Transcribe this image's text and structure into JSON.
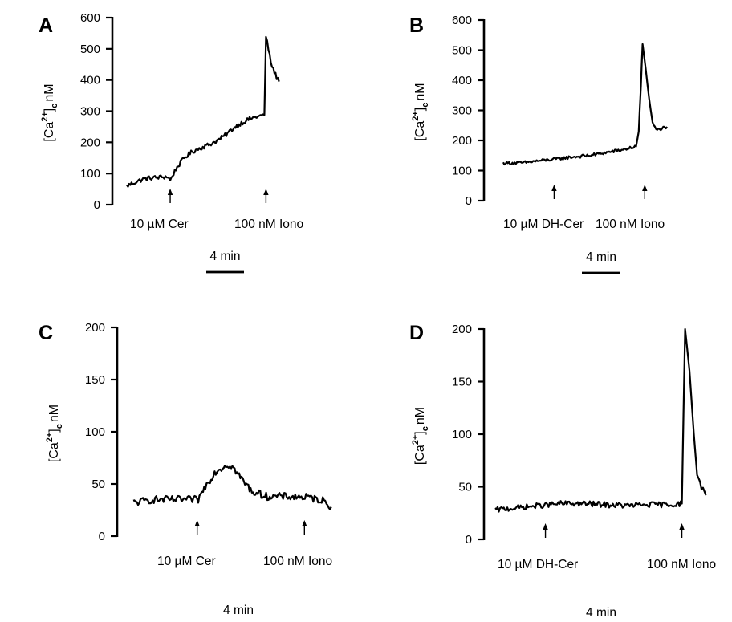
{
  "figure": {
    "ylabel_main": "[Ca",
    "ylabel_sup": "2+",
    "ylabel_close": "]",
    "ylabel_sub": "c",
    "ylabel_unit": "nM"
  },
  "chart_data": [
    {
      "type": "line",
      "panel": "A",
      "ylim": [
        0,
        600
      ],
      "yticks": [
        "0",
        "100",
        "200",
        "300",
        "400",
        "500",
        "600"
      ],
      "ylabel": "[Ca2+]c nM",
      "xlim": [
        0,
        20
      ],
      "x_units": "min",
      "scale_bar_label": "4 min",
      "annotations": [
        {
          "label": "10 µM  Cer",
          "x": 5.3
        },
        {
          "label": "100 nM Iono",
          "x": 17.0
        }
      ],
      "series": [
        {
          "points": [
            [
              0,
              60
            ],
            [
              1,
              72
            ],
            [
              2,
              82
            ],
            [
              3,
              86
            ],
            [
              4,
              88
            ],
            [
              5,
              90
            ],
            [
              5.3,
              78
            ],
            [
              6,
              115
            ],
            [
              7,
              150
            ],
            [
              8,
              170
            ],
            [
              9,
              182
            ],
            [
              10,
              192
            ],
            [
              11,
              205
            ],
            [
              12,
              222
            ],
            [
              13,
              245
            ],
            [
              14,
              262
            ],
            [
              15,
              275
            ],
            [
              16,
              283
            ],
            [
              16.8,
              288
            ],
            [
              17.0,
              540
            ],
            [
              17.3,
              500
            ],
            [
              17.6,
              455
            ],
            [
              17.9,
              435
            ],
            [
              18.3,
              408
            ],
            [
              18.6,
              395
            ]
          ],
          "noise": 7
        }
      ]
    },
    {
      "type": "line",
      "panel": "B",
      "ylim": [
        0,
        600
      ],
      "yticks": [
        "0",
        "100",
        "200",
        "300",
        "400",
        "500",
        "600"
      ],
      "ylabel": "[Ca2+]c nM",
      "xlim": [
        0,
        20
      ],
      "x_units": "min",
      "scale_bar_label": "4 min",
      "annotations": [
        {
          "label": "10 µM DH-Cer",
          "x": 5.9
        },
        {
          "label": "100 nM Iono",
          "x": 16.4
        }
      ],
      "series": [
        {
          "points": [
            [
              0,
              125
            ],
            [
              2,
              125
            ],
            [
              4,
              132
            ],
            [
              6,
              138
            ],
            [
              8,
              145
            ],
            [
              10,
              150
            ],
            [
              12,
              160
            ],
            [
              14,
              170
            ],
            [
              15.4,
              180
            ],
            [
              15.7,
              230
            ],
            [
              15.95,
              380
            ],
            [
              16.15,
              520
            ],
            [
              16.5,
              440
            ],
            [
              16.9,
              340
            ],
            [
              17.3,
              260
            ],
            [
              17.7,
              235
            ],
            [
              18.4,
              240
            ],
            [
              19.0,
              245
            ]
          ],
          "noise": 5
        }
      ]
    },
    {
      "type": "line",
      "panel": "C",
      "ylim": [
        0,
        200
      ],
      "yticks": [
        "0",
        "50",
        "100",
        "150",
        "200"
      ],
      "ylabel": "[Ca2+]c nM",
      "xlim": [
        0,
        20
      ],
      "x_units": "min",
      "scale_bar_label": "4 min",
      "annotations": [
        {
          "label": "10 µM  Cer",
          "x": 6.2
        },
        {
          "label": "100 nM Iono",
          "x": 16.6
        }
      ],
      "series": [
        {
          "points": [
            [
              0,
              32
            ],
            [
              2,
              35
            ],
            [
              4,
              35
            ],
            [
              5.5,
              35
            ],
            [
              6.3,
              35
            ],
            [
              7,
              48
            ],
            [
              8,
              62
            ],
            [
              9,
              68
            ],
            [
              9.5,
              68
            ],
            [
              10.5,
              55
            ],
            [
              11.5,
              43
            ],
            [
              13,
              38
            ],
            [
              15,
              38
            ],
            [
              17,
              37
            ],
            [
              18.5,
              34
            ],
            [
              19.2,
              28
            ]
          ],
          "noise": 3.5
        }
      ]
    },
    {
      "type": "line",
      "panel": "D",
      "ylim": [
        0,
        200
      ],
      "yticks": [
        "0",
        "50",
        "100",
        "150",
        "200"
      ],
      "ylabel": "[Ca2+]c nM",
      "xlim": [
        0,
        20
      ],
      "x_units": "min",
      "scale_bar_label": "4 min",
      "annotations": [
        {
          "label": "10 µM  DH-Cer",
          "x": 4.6
        },
        {
          "label": "100 nM Iono",
          "x": 17.1
        }
      ],
      "series": [
        {
          "points": [
            [
              0,
              28
            ],
            [
              2,
              30
            ],
            [
              4,
              32
            ],
            [
              6,
              34
            ],
            [
              8,
              34
            ],
            [
              10,
              33
            ],
            [
              12,
              32
            ],
            [
              14,
              33
            ],
            [
              16,
              33
            ],
            [
              17.1,
              34
            ],
            [
              17.25,
              120
            ],
            [
              17.4,
              200
            ],
            [
              17.8,
              160
            ],
            [
              18.2,
              100
            ],
            [
              18.5,
              60
            ],
            [
              18.9,
              50
            ],
            [
              19.3,
              42
            ]
          ],
          "noise": 2.6
        }
      ]
    }
  ]
}
